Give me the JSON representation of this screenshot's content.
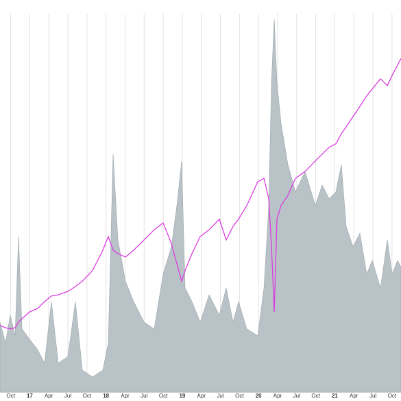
{
  "chart_data": {
    "type": "area-line",
    "xlim": [
      2016.61,
      2021.868
    ],
    "ylim": [
      0,
      100
    ],
    "grid": true,
    "xticks": [
      {
        "value": 2016.75,
        "label": "Oct"
      },
      {
        "value": 2017.0,
        "label": "17"
      },
      {
        "value": 2017.25,
        "label": "Apr"
      },
      {
        "value": 2017.5,
        "label": "Jul"
      },
      {
        "value": 2017.75,
        "label": "Oct"
      },
      {
        "value": 2018.0,
        "label": "18"
      },
      {
        "value": 2018.25,
        "label": "Apr"
      },
      {
        "value": 2018.5,
        "label": "Jul"
      },
      {
        "value": 2018.75,
        "label": "Oct"
      },
      {
        "value": 2019.0,
        "label": "19"
      },
      {
        "value": 2019.25,
        "label": "Apr"
      },
      {
        "value": 2019.5,
        "label": "Jul"
      },
      {
        "value": 2019.75,
        "label": "Oct"
      },
      {
        "value": 2020.0,
        "label": "20"
      },
      {
        "value": 2020.25,
        "label": "Apr"
      },
      {
        "value": 2020.5,
        "label": "Jul"
      },
      {
        "value": 2020.75,
        "label": "Oct"
      },
      {
        "value": 2021.0,
        "label": "21"
      },
      {
        "value": 2021.25,
        "label": "Apr"
      },
      {
        "value": 2021.5,
        "label": "Jul"
      },
      {
        "value": 2021.75,
        "label": "Oct"
      }
    ],
    "x": [
      2016.61,
      2016.682,
      2016.745,
      2016.808,
      2016.853,
      2016.898,
      2017.0,
      2017.104,
      2017.194,
      2017.284,
      2017.374,
      2017.5,
      2017.599,
      2017.689,
      2017.823,
      2017.958,
      2018.03,
      2018.093,
      2018.156,
      2018.255,
      2018.363,
      2018.498,
      2018.632,
      2018.749,
      2018.857,
      2018.929,
      2018.992,
      2019.037,
      2019.127,
      2019.235,
      2019.352,
      2019.486,
      2019.576,
      2019.666,
      2019.738,
      2019.846,
      2019.99,
      2020.071,
      2020.134,
      2020.17,
      2020.206,
      2020.241,
      2020.295,
      2020.385,
      2020.484,
      2020.61,
      2020.745,
      2020.835,
      2020.925,
      2021.014,
      2021.086,
      2021.149,
      2021.239,
      2021.329,
      2021.419,
      2021.491,
      2021.599,
      2021.689,
      2021.752,
      2021.823,
      2021.868
    ],
    "series": [
      {
        "kind": "area",
        "color": "#b9c3c7",
        "values": [
          18.5,
          13.0,
          20.3,
          14.9,
          41.1,
          16.7,
          13.9,
          11.2,
          7.6,
          23.9,
          7.6,
          9.4,
          23.9,
          5.8,
          4.0,
          5.8,
          13.0,
          62.9,
          40.2,
          29.3,
          23.9,
          18.5,
          16.7,
          31.2,
          38.4,
          49.3,
          61.1,
          27.5,
          23.9,
          18.5,
          25.7,
          20.3,
          27.5,
          18.5,
          23.9,
          16.7,
          14.9,
          27.5,
          49.3,
          81.9,
          98.6,
          81.9,
          71.0,
          60.1,
          52.9,
          58.3,
          49.3,
          54.7,
          51.1,
          52.9,
          60.1,
          43.8,
          38.4,
          42.0,
          31.2,
          34.8,
          27.5,
          40.2,
          31.2,
          34.8,
          33.0
        ]
      },
      {
        "kind": "line",
        "color": "#d93ce0",
        "values": [
          17.6,
          17.0,
          16.7,
          17.0,
          18.5,
          19.4,
          21.2,
          22.1,
          23.9,
          25.4,
          25.7,
          26.6,
          27.9,
          29.3,
          32.1,
          37.5,
          41.1,
          37.5,
          36.6,
          35.7,
          37.5,
          40.2,
          42.9,
          44.7,
          39.3,
          33.9,
          29.3,
          32.1,
          36.6,
          41.1,
          42.9,
          45.7,
          40.2,
          43.8,
          45.7,
          49.3,
          55.6,
          56.5,
          51.1,
          38.4,
          21.2,
          45.7,
          49.3,
          52.0,
          56.5,
          58.3,
          61.1,
          62.9,
          64.7,
          65.6,
          68.3,
          70.1,
          72.8,
          75.5,
          78.3,
          80.1,
          82.8,
          81.0,
          83.7,
          86.4,
          88.2
        ]
      }
    ]
  }
}
